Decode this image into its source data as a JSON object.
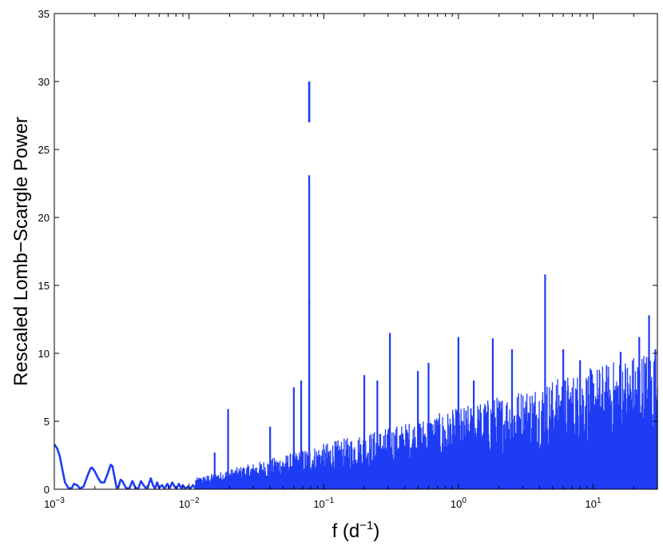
{
  "chart_data": {
    "type": "line",
    "title": "",
    "xlabel": "f (d",
    "xlabel_exponent": "−1",
    "xlabel_suffix": ")",
    "ylabel": "Rescaled Lomb−Scargle Power",
    "x_scale": "log",
    "xlim": [
      0.001,
      30
    ],
    "ylim": [
      0,
      35
    ],
    "grid": false,
    "legend": "none",
    "x_tick_labels": [
      {
        "value": 0.001,
        "base": "10",
        "exp": "−3"
      },
      {
        "value": 0.01,
        "base": "10",
        "exp": "−2"
      },
      {
        "value": 0.1,
        "base": "10",
        "exp": "−1"
      },
      {
        "value": 1,
        "base": "10",
        "exp": "0"
      },
      {
        "value": 10,
        "base": "10",
        "exp": "1"
      }
    ],
    "y_ticks": [
      0,
      5,
      10,
      15,
      20,
      25,
      30,
      35
    ],
    "line_color": "#1f3cf5",
    "series": [
      {
        "low_freq_curve": {
          "x": [
            0.001,
            0.00105,
            0.0011,
            0.00115,
            0.0012,
            0.00128,
            0.00135,
            0.0014,
            0.00148,
            0.00155,
            0.00165,
            0.00175,
            0.00185,
            0.0019,
            0.002,
            0.00212,
            0.00222,
            0.00235,
            0.0025,
            0.00262,
            0.0027,
            0.0028,
            0.0029,
            0.003,
            0.0031,
            0.0032,
            0.0034,
            0.0036,
            0.0038,
            0.004,
            0.0042,
            0.0044,
            0.0046,
            0.0048,
            0.005,
            0.0052,
            0.0054,
            0.0056,
            0.0058,
            0.006,
            0.0063,
            0.0066,
            0.0069,
            0.0072,
            0.0075,
            0.0078,
            0.0081,
            0.0084,
            0.0087,
            0.009,
            0.0094,
            0.0098,
            0.0102,
            0.0107,
            0.0112
          ],
          "y": [
            3.3,
            3.0,
            2.4,
            1.4,
            0.5,
            0.05,
            0.1,
            0.4,
            0.3,
            0.05,
            0.2,
            0.9,
            1.5,
            1.6,
            1.3,
            0.8,
            0.5,
            0.5,
            1.2,
            1.8,
            1.7,
            0.9,
            0.1,
            0.2,
            0.7,
            0.6,
            0.1,
            0.05,
            0.6,
            0.1,
            0.05,
            0.6,
            0.3,
            0.05,
            0.3,
            0.8,
            0.3,
            0.05,
            0.5,
            0.1,
            0.3,
            0.05,
            0.4,
            0.1,
            0.5,
            0.2,
            0.05,
            0.4,
            0.1,
            0.3,
            0.05,
            0.2,
            0.05,
            0.3,
            0.05
          ]
        },
        "peaks": [
          {
            "x": 0.0155,
            "y": 2.7
          },
          {
            "x": 0.0195,
            "y": 5.9
          },
          {
            "x": 0.025,
            "y": 1.3
          },
          {
            "x": 0.04,
            "y": 4.6
          },
          {
            "x": 0.06,
            "y": 7.5
          },
          {
            "x": 0.068,
            "y": 8.0
          },
          {
            "x": 0.078,
            "y": 23.1
          },
          {
            "x": 0.078,
            "y": 14.0
          },
          {
            "x": 0.1,
            "y": 2.0
          },
          {
            "x": 0.2,
            "y": 8.4
          },
          {
            "x": 0.25,
            "y": 8.0
          },
          {
            "x": 0.31,
            "y": 11.5
          },
          {
            "x": 0.5,
            "y": 8.7
          },
          {
            "x": 0.6,
            "y": 9.3
          },
          {
            "x": 1.0,
            "y": 11.2
          },
          {
            "x": 1.3,
            "y": 8.0
          },
          {
            "x": 1.8,
            "y": 11.1
          },
          {
            "x": 2.5,
            "y": 10.3
          },
          {
            "x": 4.4,
            "y": 15.8
          },
          {
            "x": 6.0,
            "y": 10.3
          },
          {
            "x": 8.0,
            "y": 9.5
          },
          {
            "x": 16.0,
            "y": 10.1
          },
          {
            "x": 22.0,
            "y": 11.2
          },
          {
            "x": 26.0,
            "y": 12.8
          },
          {
            "x": 29.0,
            "y": 10.3
          }
        ],
        "isolated_segment": {
          "x": 0.078,
          "y_from": 27.0,
          "y_to": 30.0
        },
        "noise_floor": {
          "x": [
            0.01,
            0.03,
            0.1,
            0.3,
            1,
            3,
            10,
            30
          ],
          "envelope_y": [
            0.6,
            1.6,
            2.8,
            3.8,
            5.0,
            6.2,
            7.5,
            8.8
          ]
        }
      }
    ]
  }
}
